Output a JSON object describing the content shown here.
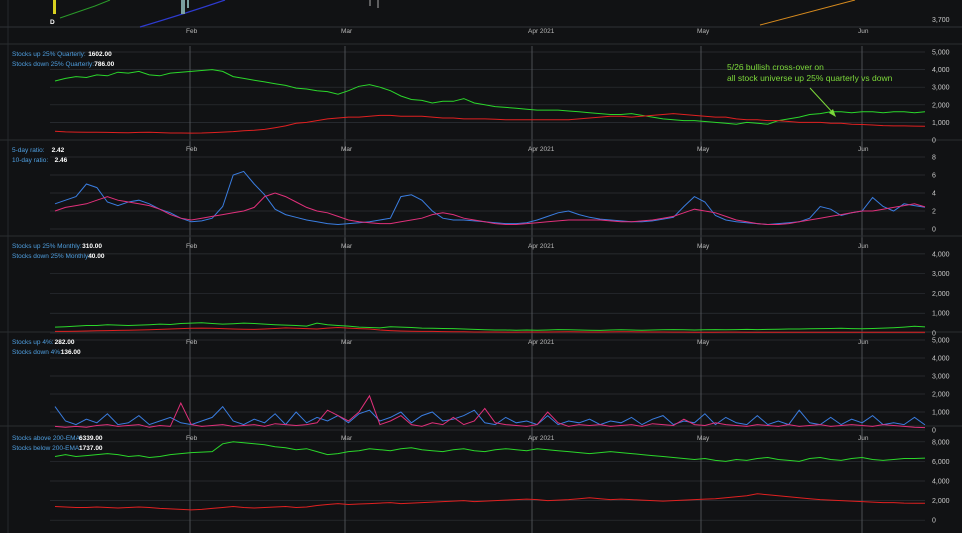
{
  "colors": {
    "background": "#111214",
    "grid": "#2e3136",
    "gridStrong": "#5a5d62",
    "label": "#4f9fe0",
    "green": "#2bd62b",
    "red": "#e02020",
    "blue": "#3a7de0",
    "magenta": "#e0307a",
    "orange": "#d68a1e",
    "annotation": "#7cd83a"
  },
  "month_labels": [
    "Feb",
    "Mar",
    "Apr 2021",
    "May",
    "Jun"
  ],
  "top_strip": {
    "y_label": "3,700",
    "marker_label": "D"
  },
  "annotation": {
    "line1": "5/26 bullish cross-over on",
    "line2": "all stock universe up 25% quarterly vs down"
  },
  "chart_data": [
    {
      "type": "line",
      "panel": "quarterly",
      "legend": [
        {
          "label": "Stocks up 25% Quarterly:",
          "value": "1602.00"
        },
        {
          "label": "Stocks down 25% Quarterly:",
          "value": "786.00"
        }
      ],
      "ylim": [
        0,
        5000
      ],
      "yticks": [
        0,
        1000,
        2000,
        3000,
        4000,
        5000
      ],
      "ytick_labels": [
        "0",
        "1,000",
        "2,000",
        "3,000",
        "4,000",
        "5,000"
      ],
      "series": [
        {
          "color": "green",
          "values": [
            3350,
            3500,
            3600,
            3550,
            3700,
            3650,
            3850,
            3800,
            3900,
            3700,
            3650,
            3800,
            3850,
            3900,
            3950,
            4000,
            3900,
            3600,
            3500,
            3400,
            3300,
            3200,
            3100,
            2950,
            2900,
            2800,
            2750,
            2600,
            2800,
            3050,
            3150,
            3000,
            2800,
            2500,
            2300,
            2250,
            2100,
            2200,
            2200,
            2350,
            2100,
            2000,
            1900,
            1850,
            1800,
            1750,
            1700,
            1700,
            1700,
            1650,
            1600,
            1550,
            1500,
            1450,
            1450,
            1500,
            1400,
            1300,
            1200,
            1150,
            1100,
            1100,
            1050,
            1000,
            950,
            900,
            1000,
            950,
            900,
            1100,
            1200,
            1300,
            1450,
            1500,
            1600,
            1600,
            1550,
            1600,
            1600,
            1550,
            1600,
            1600,
            1550,
            1600
          ]
        },
        {
          "color": "red",
          "values": [
            500,
            460,
            450,
            440,
            440,
            430,
            420,
            410,
            430,
            440,
            420,
            400,
            400,
            390,
            400,
            420,
            450,
            480,
            520,
            550,
            600,
            700,
            800,
            950,
            1000,
            1100,
            1200,
            1250,
            1300,
            1300,
            1350,
            1400,
            1400,
            1350,
            1350,
            1350,
            1300,
            1250,
            1250,
            1200,
            1200,
            1200,
            1180,
            1150,
            1150,
            1150,
            1150,
            1150,
            1150,
            1150,
            1200,
            1250,
            1300,
            1350,
            1350,
            1300,
            1350,
            1400,
            1450,
            1500,
            1450,
            1400,
            1350,
            1300,
            1300,
            1200,
            1150,
            1150,
            1100,
            1100,
            1050,
            1000,
            1000,
            1000,
            950,
            950,
            900,
            880,
            850,
            820,
            800,
            800,
            790,
            786
          ]
        }
      ]
    },
    {
      "type": "line",
      "panel": "ratio",
      "legend": [
        {
          "label": "5-day ratio:",
          "value": "2.42"
        },
        {
          "label": "10-day ratio:",
          "value": "2.46"
        }
      ],
      "ylim": [
        -1,
        9
      ],
      "yticks": [
        0,
        2,
        4,
        6,
        8
      ],
      "ytick_labels": [
        "0",
        "2",
        "4",
        "6",
        "8"
      ],
      "series": [
        {
          "color": "blue",
          "values": [
            2.8,
            3.2,
            3.6,
            5.0,
            4.6,
            3.0,
            2.6,
            3.0,
            3.2,
            2.8,
            2.2,
            1.8,
            1.2,
            0.8,
            0.9,
            1.2,
            2.5,
            6.0,
            6.4,
            5.0,
            3.8,
            2.2,
            1.6,
            1.3,
            1.0,
            0.8,
            0.6,
            0.5,
            0.6,
            0.7,
            0.8,
            1.0,
            1.2,
            3.6,
            3.8,
            3.2,
            2.0,
            1.2,
            1.0,
            1.0,
            0.9,
            0.8,
            0.7,
            0.6,
            0.6,
            0.7,
            1.0,
            1.4,
            1.8,
            2.0,
            1.6,
            1.3,
            1.1,
            1.0,
            0.9,
            0.8,
            0.8,
            0.9,
            1.1,
            1.3,
            2.5,
            3.6,
            3.0,
            1.5,
            1.0,
            0.8,
            0.7,
            0.6,
            0.5,
            0.6,
            0.7,
            0.8,
            1.2,
            2.5,
            2.2,
            1.5,
            1.8,
            2.0,
            3.5,
            2.5,
            2.0,
            2.8,
            2.6,
            2.42
          ]
        },
        {
          "color": "magenta",
          "values": [
            2.0,
            2.4,
            2.6,
            2.8,
            3.2,
            3.6,
            3.2,
            3.0,
            2.8,
            2.6,
            2.2,
            1.6,
            1.2,
            1.0,
            1.2,
            1.4,
            1.6,
            1.8,
            2.0,
            2.4,
            3.6,
            4.0,
            3.6,
            3.0,
            2.4,
            2.0,
            1.8,
            1.4,
            1.0,
            0.8,
            0.7,
            0.6,
            0.6,
            0.8,
            1.0,
            1.2,
            1.6,
            1.8,
            1.6,
            1.2,
            1.0,
            0.8,
            0.6,
            0.5,
            0.5,
            0.6,
            0.7,
            0.8,
            0.9,
            1.0,
            1.0,
            1.0,
            1.0,
            0.9,
            0.8,
            0.8,
            0.9,
            1.0,
            1.2,
            1.4,
            1.8,
            2.2,
            2.0,
            1.8,
            1.4,
            1.0,
            0.8,
            0.6,
            0.5,
            0.5,
            0.6,
            0.8,
            1.0,
            1.2,
            1.4,
            1.6,
            1.8,
            2.0,
            2.0,
            2.2,
            2.4,
            2.6,
            2.8,
            2.46
          ]
        }
      ]
    },
    {
      "type": "line",
      "panel": "monthly",
      "legend": [
        {
          "label": "Stocks up 25% Monthly:",
          "value": "310.00"
        },
        {
          "label": "Stocks down 25% Monthly:",
          "value": "40.00"
        }
      ],
      "ylim": [
        0,
        4500
      ],
      "yticks": [
        0,
        1000,
        2000,
        3000,
        4000
      ],
      "ytick_labels": [
        "0",
        "1,000",
        "2,000",
        "3,000",
        "4,000"
      ],
      "series": [
        {
          "color": "green",
          "values": [
            300,
            320,
            350,
            380,
            380,
            420,
            400,
            380,
            400,
            420,
            450,
            430,
            480,
            500,
            520,
            480,
            450,
            470,
            500,
            480,
            450,
            420,
            400,
            380,
            350,
            500,
            420,
            380,
            350,
            300,
            280,
            260,
            320,
            300,
            280,
            250,
            240,
            230,
            220,
            200,
            180,
            160,
            150,
            150,
            140,
            150,
            140,
            150,
            170,
            160,
            150,
            140,
            130,
            150,
            160,
            150,
            140,
            150,
            160,
            170,
            160,
            150,
            160,
            170,
            160,
            170,
            180,
            170,
            180,
            190,
            200,
            200,
            210,
            220,
            230,
            240,
            220,
            210,
            230,
            250,
            270,
            300,
            340,
            310
          ]
        },
        {
          "color": "red",
          "values": [
            80,
            80,
            90,
            100,
            110,
            120,
            130,
            140,
            150,
            160,
            180,
            200,
            220,
            240,
            250,
            240,
            220,
            200,
            190,
            180,
            200,
            230,
            260,
            240,
            220,
            200,
            250,
            280,
            250,
            220,
            200,
            150,
            120,
            100,
            90,
            80,
            80,
            70,
            60,
            60,
            50,
            50,
            50,
            45,
            45,
            50,
            50,
            50,
            55,
            60,
            55,
            50,
            50,
            55,
            60,
            60,
            55,
            50,
            50,
            45,
            45,
            40,
            40,
            40,
            45,
            45,
            40,
            40,
            42,
            40,
            38,
            38,
            40,
            40,
            42,
            40,
            40,
            38,
            40,
            40,
            42,
            40,
            40,
            40
          ]
        }
      ]
    },
    {
      "type": "line",
      "panel": "four_percent",
      "legend": [
        {
          "label": "Stocks up 4%:",
          "value": "282.00"
        },
        {
          "label": "Stocks down 4%:",
          "value": "136.00"
        }
      ],
      "ylim": [
        0,
        5000
      ],
      "yticks": [
        0,
        1000,
        2000,
        3000,
        4000,
        5000
      ],
      "ytick_labels": [
        "0",
        "1,000",
        "2,000",
        "3,000",
        "4,000",
        "5,000"
      ],
      "series": [
        {
          "color": "blue",
          "values": [
            1300,
            500,
            300,
            600,
            400,
            900,
            300,
            400,
            800,
            300,
            500,
            700,
            400,
            300,
            500,
            700,
            1300,
            500,
            300,
            600,
            400,
            900,
            300,
            1000,
            400,
            700,
            500,
            800,
            400,
            900,
            1100,
            500,
            700,
            1000,
            400,
            800,
            1000,
            500,
            600,
            800,
            1100,
            400,
            300,
            700,
            400,
            500,
            300,
            800,
            300,
            500,
            400,
            600,
            300,
            500,
            400,
            700,
            300,
            600,
            800,
            300,
            500,
            400,
            900,
            300,
            700,
            400,
            300,
            800,
            300,
            500,
            300,
            1100,
            400,
            300,
            700,
            300,
            600,
            400,
            800,
            300,
            400,
            300,
            700,
            282
          ]
        },
        {
          "color": "magenta",
          "values": [
            200,
            150,
            200,
            150,
            250,
            300,
            200,
            250,
            300,
            150,
            250,
            200,
            1500,
            300,
            200,
            250,
            300,
            200,
            250,
            300,
            200,
            350,
            300,
            250,
            300,
            400,
            1100,
            800,
            500,
            1000,
            1900,
            300,
            500,
            800,
            300,
            200,
            400,
            300,
            700,
            300,
            500,
            1200,
            400,
            300,
            250,
            200,
            300,
            1000,
            400,
            200,
            300,
            250,
            300,
            200,
            250,
            300,
            200,
            350,
            300,
            250,
            600,
            300,
            250,
            400,
            300,
            250,
            200,
            300,
            250,
            200,
            300,
            200,
            250,
            300,
            200,
            250,
            300,
            250,
            200,
            300,
            250,
            200,
            150,
            136
          ]
        }
      ]
    },
    {
      "type": "line",
      "panel": "ema200",
      "legend": [
        {
          "label": "Stocks above 200-EMA:",
          "value": "6339.00"
        },
        {
          "label": "Stocks below 200-EMA:",
          "value": "1737.00"
        }
      ],
      "ylim": [
        -1000,
        8800
      ],
      "yticks": [
        0,
        2000,
        4000,
        6000,
        8000
      ],
      "ytick_labels": [
        "0",
        "2,000",
        "4,000",
        "6,000",
        "8,000"
      ],
      "series": [
        {
          "color": "green",
          "values": [
            6500,
            6700,
            6500,
            6600,
            6700,
            6800,
            6700,
            6500,
            6600,
            6400,
            6500,
            6700,
            6800,
            6900,
            6950,
            7000,
            7800,
            8000,
            7900,
            7800,
            7700,
            7500,
            7400,
            7200,
            7300,
            7000,
            6700,
            6800,
            7000,
            7100,
            7300,
            7200,
            7100,
            7300,
            7400,
            7200,
            7100,
            7000,
            7200,
            7300,
            7100,
            7000,
            7200,
            7300,
            7200,
            7100,
            7300,
            7200,
            7100,
            7000,
            6900,
            6800,
            6900,
            7000,
            6900,
            6800,
            6700,
            6600,
            6500,
            6400,
            6300,
            6200,
            6300,
            6100,
            6000,
            6200,
            6100,
            6300,
            6400,
            6200,
            6100,
            6000,
            6300,
            6400,
            6200,
            6100,
            6300,
            6400,
            6200,
            6100,
            6200,
            6300,
            6300,
            6339
          ]
        },
        {
          "color": "red",
          "values": [
            1400,
            1350,
            1300,
            1300,
            1350,
            1300,
            1250,
            1300,
            1350,
            1300,
            1200,
            1150,
            1100,
            1050,
            1100,
            1200,
            1300,
            1400,
            1300,
            1250,
            1300,
            1350,
            1400,
            1300,
            1350,
            1500,
            1600,
            1700,
            1600,
            1650,
            1700,
            1750,
            1800,
            1700,
            1750,
            1800,
            1850,
            1900,
            1950,
            2000,
            1900,
            1950,
            2000,
            2050,
            2100,
            2150,
            2100,
            2000,
            2050,
            2100,
            2200,
            2300,
            2200,
            2100,
            2150,
            2100,
            2050,
            2000,
            1950,
            2000,
            2050,
            2100,
            2150,
            2200,
            2300,
            2400,
            2500,
            2700,
            2600,
            2500,
            2400,
            2300,
            2200,
            2100,
            2050,
            2000,
            1950,
            1900,
            1850,
            1800,
            1800,
            1750,
            1740,
            1737
          ]
        }
      ]
    }
  ]
}
